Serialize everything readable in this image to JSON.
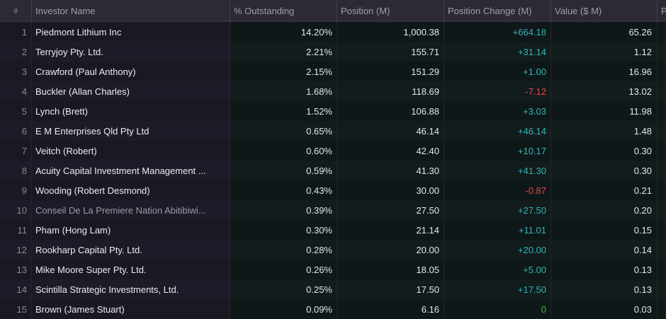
{
  "header": {
    "hash": "#",
    "investor_name": "Investor Name",
    "pct_outstanding": "% Outstanding",
    "position": "Position (M)",
    "position_change": "Position Change (M)",
    "value": "Value ($ M)",
    "next_col": "P"
  },
  "colors": {
    "positive": "#35b3b6",
    "negative": "#e2474b",
    "zero": "#3fbb3f"
  },
  "rows": [
    {
      "idx": "1",
      "name": "Piedmont Lithium Inc",
      "pct": "14.20%",
      "pos": "1,000.38",
      "chg": "+664.18",
      "val": "65.26",
      "sign": "pos",
      "dim": false
    },
    {
      "idx": "2",
      "name": "Terryjoy Pty. Ltd.",
      "pct": "2.21%",
      "pos": "155.71",
      "chg": "+31.14",
      "val": "1.12",
      "sign": "pos",
      "dim": false
    },
    {
      "idx": "3",
      "name": "Crawford (Paul Anthony)",
      "pct": "2.15%",
      "pos": "151.29",
      "chg": "+1.00",
      "val": "16.96",
      "sign": "pos",
      "dim": false
    },
    {
      "idx": "4",
      "name": "Buckler (Allan Charles)",
      "pct": "1.68%",
      "pos": "118.69",
      "chg": "-7.12",
      "val": "13.02",
      "sign": "neg",
      "dim": false
    },
    {
      "idx": "5",
      "name": "Lynch (Brett)",
      "pct": "1.52%",
      "pos": "106.88",
      "chg": "+3.03",
      "val": "11.98",
      "sign": "pos",
      "dim": false
    },
    {
      "idx": "6",
      "name": "E M Enterprises Qld Pty Ltd",
      "pct": "0.65%",
      "pos": "46.14",
      "chg": "+46.14",
      "val": "1.48",
      "sign": "pos",
      "dim": false
    },
    {
      "idx": "7",
      "name": "Veitch (Robert)",
      "pct": "0.60%",
      "pos": "42.40",
      "chg": "+10.17",
      "val": "0.30",
      "sign": "pos",
      "dim": false
    },
    {
      "idx": "8",
      "name": "Acuity Capital Investment Management ...",
      "pct": "0.59%",
      "pos": "41.30",
      "chg": "+41.30",
      "val": "0.30",
      "sign": "pos",
      "dim": false
    },
    {
      "idx": "9",
      "name": "Wooding (Robert Desmond)",
      "pct": "0.43%",
      "pos": "30.00",
      "chg": "-0.87",
      "val": "0.21",
      "sign": "neg",
      "dim": false
    },
    {
      "idx": "10",
      "name": "Conseil De La Premiere Nation Abitibiwi...",
      "pct": "0.39%",
      "pos": "27.50",
      "chg": "+27.50",
      "val": "0.20",
      "sign": "pos",
      "dim": true
    },
    {
      "idx": "11",
      "name": "Pham (Hong Lam)",
      "pct": "0.30%",
      "pos": "21.14",
      "chg": "+11.01",
      "val": "0.15",
      "sign": "pos",
      "dim": false
    },
    {
      "idx": "12",
      "name": "Rookharp Capital Pty. Ltd.",
      "pct": "0.28%",
      "pos": "20.00",
      "chg": "+20.00",
      "val": "0.14",
      "sign": "pos",
      "dim": false
    },
    {
      "idx": "13",
      "name": "Mike Moore Super Pty. Ltd.",
      "pct": "0.26%",
      "pos": "18.05",
      "chg": "+5.00",
      "val": "0.13",
      "sign": "pos",
      "dim": false
    },
    {
      "idx": "14",
      "name": "Scintilla Strategic Investments, Ltd.",
      "pct": "0.25%",
      "pos": "17.50",
      "chg": "+17.50",
      "val": "0.13",
      "sign": "pos",
      "dim": false
    },
    {
      "idx": "15",
      "name": "Brown (James Stuart)",
      "pct": "0.09%",
      "pos": "6.16",
      "chg": "0",
      "val": "0.03",
      "sign": "zero",
      "dim": false
    }
  ]
}
